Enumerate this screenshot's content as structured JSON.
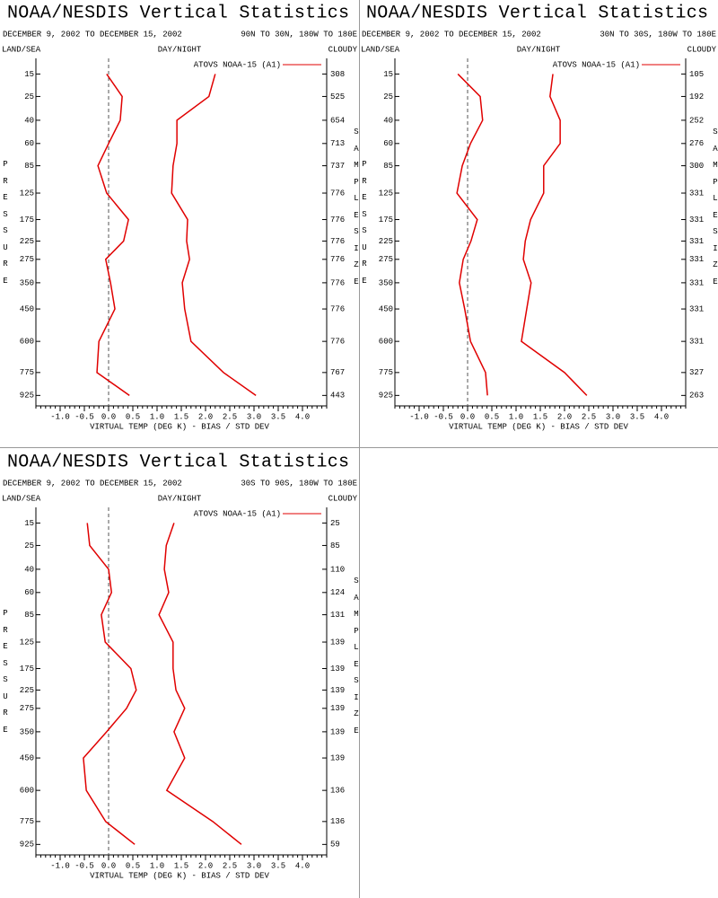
{
  "chart_data": [
    {
      "type": "line",
      "title": "NOAA/NESDIS Vertical Statistics",
      "subtitle": "DECEMBER 9, 2002 TO DECEMBER 15, 2002",
      "region": "90N TO 30N, 180W TO 180E",
      "left_header": "LAND/SEA",
      "center_header": "DAY/NIGHT",
      "right_header": "CLOUDY",
      "ylabel": "PRESSURE",
      "y2label": "SAMPLE SIZE",
      "xlabel": "VIRTUAL TEMP (DEG K) - BIAS / STD DEV",
      "legend": "ATOVS NOAA-15 (A1)",
      "color": "#e00000",
      "levels": [
        15,
        25,
        40,
        60,
        85,
        125,
        175,
        225,
        275,
        350,
        450,
        600,
        775,
        925
      ],
      "sample_sizes": [
        308,
        525,
        654,
        713,
        737,
        776,
        776,
        776,
        776,
        776,
        776,
        776,
        767,
        443
      ],
      "series": [
        {
          "values": [
            -0.04,
            0.28,
            0.24,
            0.0,
            -0.22,
            -0.04,
            0.41,
            0.31,
            -0.06,
            0.04,
            0.13,
            -0.2,
            -0.24,
            0.43
          ]
        },
        {
          "values": [
            2.2,
            2.07,
            1.41,
            1.41,
            1.33,
            1.3,
            1.63,
            1.61,
            1.67,
            1.52,
            1.57,
            1.7,
            2.37,
            3.04
          ]
        }
      ],
      "xlim": [
        -1.5,
        4.5
      ],
      "xticks": [
        {
          "value": -1,
          "label": "-1.0"
        },
        {
          "value": -0.5,
          "label": "-0.5"
        },
        {
          "value": 0,
          "label": "0.0"
        },
        {
          "value": 0.5,
          "label": "0.5"
        },
        {
          "value": 1,
          "label": "1.0"
        },
        {
          "value": 1.5,
          "label": "1.5"
        },
        {
          "value": 2,
          "label": "2.0"
        },
        {
          "value": 2.5,
          "label": "2.5"
        },
        {
          "value": 3,
          "label": "3.0"
        },
        {
          "value": 3.5,
          "label": "3.5"
        },
        {
          "value": 4,
          "label": "4.0"
        }
      ],
      "xminor": 0.1,
      "xref": 0,
      "ylim": [
        10,
        1000
      ],
      "yscale": {
        "type": "power",
        "exponent": 0.286
      }
    },
    {
      "type": "line",
      "title": "NOAA/NESDIS Vertical Statistics",
      "subtitle": "DECEMBER 9, 2002 TO DECEMBER 15, 2002",
      "region": "30N TO 30S, 180W TO 180E",
      "left_header": "LAND/SEA",
      "center_header": "DAY/NIGHT",
      "right_header": "CLOUDY",
      "ylabel": "PRESSURE",
      "y2label": "SAMPLE SIZE",
      "xlabel": "VIRTUAL TEMP (DEG K) - BIAS / STD DEV",
      "legend": "ATOVS NOAA-15 (A1)",
      "color": "#e00000",
      "levels": [
        15,
        25,
        40,
        60,
        85,
        125,
        175,
        225,
        275,
        350,
        450,
        600,
        775,
        925
      ],
      "sample_sizes": [
        105,
        192,
        252,
        276,
        300,
        331,
        331,
        331,
        331,
        331,
        331,
        331,
        327,
        263
      ],
      "series": [
        {
          "values": [
            -0.2,
            0.26,
            0.31,
            0.06,
            -0.11,
            -0.22,
            0.2,
            0.07,
            -0.09,
            -0.17,
            -0.06,
            0.06,
            0.37,
            0.41
          ]
        },
        {
          "values": [
            1.76,
            1.7,
            1.91,
            1.91,
            1.57,
            1.57,
            1.3,
            1.19,
            1.15,
            1.31,
            1.22,
            1.11,
            2.0,
            2.46
          ]
        }
      ],
      "xlim": [
        -1.5,
        4.5
      ],
      "xticks": [
        {
          "value": -1,
          "label": "-1.0"
        },
        {
          "value": -0.5,
          "label": "-0.5"
        },
        {
          "value": 0,
          "label": "0.0"
        },
        {
          "value": 0.5,
          "label": "0.5"
        },
        {
          "value": 1,
          "label": "1.0"
        },
        {
          "value": 1.5,
          "label": "1.5"
        },
        {
          "value": 2,
          "label": "2.0"
        },
        {
          "value": 2.5,
          "label": "2.5"
        },
        {
          "value": 3,
          "label": "3.0"
        },
        {
          "value": 3.5,
          "label": "3.5"
        },
        {
          "value": 4,
          "label": "4.0"
        }
      ],
      "xminor": 0.1,
      "xref": 0,
      "ylim": [
        10,
        1000
      ],
      "yscale": {
        "type": "power",
        "exponent": 0.286
      }
    },
    {
      "type": "line",
      "title": "NOAA/NESDIS Vertical Statistics",
      "subtitle": "DECEMBER 9, 2002 TO DECEMBER 15, 2002",
      "region": "30S TO 90S, 180W TO 180E",
      "left_header": "LAND/SEA",
      "center_header": "DAY/NIGHT",
      "right_header": "CLOUDY",
      "ylabel": "PRESSURE",
      "y2label": "SAMPLE SIZE",
      "xlabel": "VIRTUAL TEMP (DEG K) - BIAS / STD DEV",
      "legend": "ATOVS NOAA-15 (A1)",
      "color": "#e00000",
      "levels": [
        15,
        25,
        40,
        60,
        85,
        125,
        175,
        225,
        275,
        350,
        450,
        600,
        775,
        925
      ],
      "sample_sizes": [
        25,
        85,
        110,
        124,
        131,
        139,
        139,
        139,
        139,
        139,
        139,
        136,
        136,
        59
      ],
      "series": [
        {
          "values": [
            -0.44,
            -0.39,
            0.0,
            0.06,
            -0.15,
            -0.07,
            0.46,
            0.57,
            0.37,
            -0.04,
            -0.52,
            -0.46,
            -0.06,
            0.54
          ]
        },
        {
          "values": [
            1.35,
            1.19,
            1.15,
            1.24,
            1.04,
            1.33,
            1.33,
            1.39,
            1.57,
            1.35,
            1.57,
            1.2,
            2.15,
            2.74
          ]
        }
      ],
      "xlim": [
        -1.5,
        4.5
      ],
      "xticks": [
        {
          "value": -1,
          "label": "-1.0"
        },
        {
          "value": -0.5,
          "label": "-0.5"
        },
        {
          "value": 0,
          "label": "0.0"
        },
        {
          "value": 0.5,
          "label": "0.5"
        },
        {
          "value": 1,
          "label": "1.0"
        },
        {
          "value": 1.5,
          "label": "1.5"
        },
        {
          "value": 2,
          "label": "2.0"
        },
        {
          "value": 2.5,
          "label": "2.5"
        },
        {
          "value": 3,
          "label": "3.0"
        },
        {
          "value": 3.5,
          "label": "3.5"
        },
        {
          "value": 4,
          "label": "4.0"
        }
      ],
      "xminor": 0.1,
      "xref": 0,
      "ylim": [
        10,
        1000
      ],
      "yscale": {
        "type": "power",
        "exponent": 0.286
      }
    }
  ]
}
